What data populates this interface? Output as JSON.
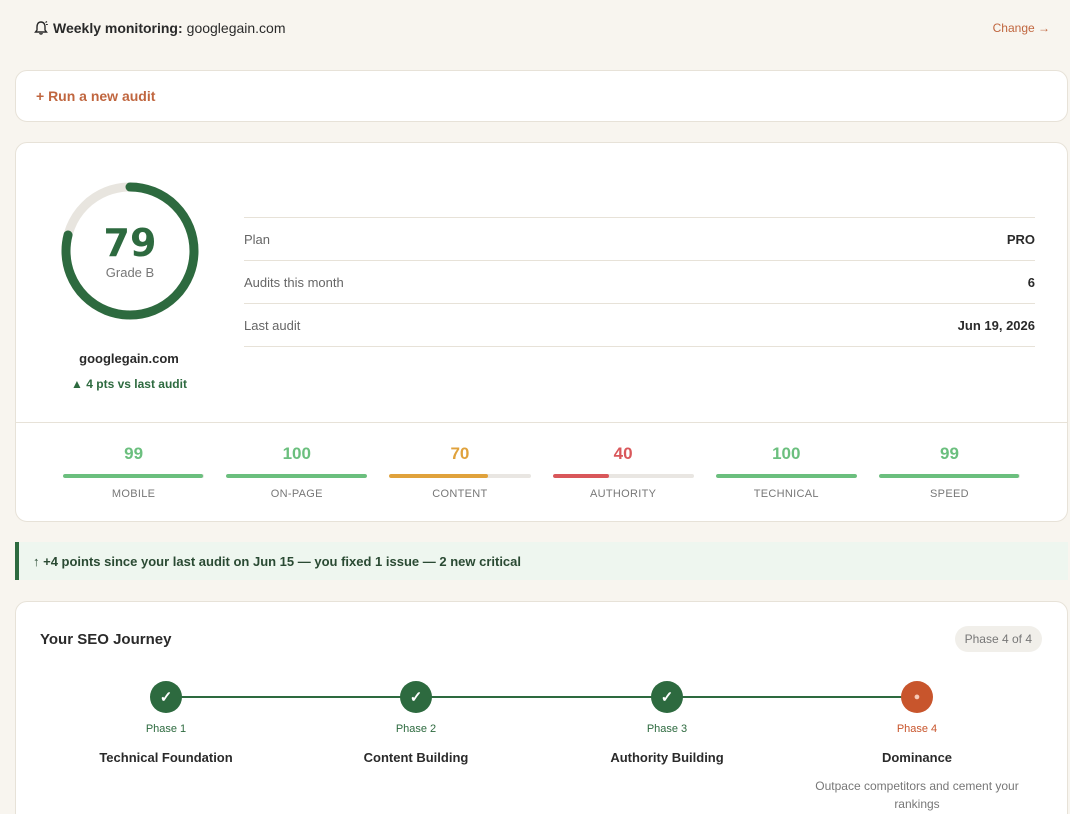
{
  "monitoring": {
    "label": "Weekly monitoring:",
    "domain": "googlegain.com",
    "change": "Change →"
  },
  "run_audit": "+ Run a new audit",
  "score": {
    "value": "79",
    "grade": "Grade B",
    "fraction": 0.79,
    "domain": "googlegain.com",
    "delta": "▲ 4 pts vs last audit"
  },
  "info": [
    {
      "label": "Plan",
      "value": "PRO"
    },
    {
      "label": "Audits this month",
      "value": "6"
    },
    {
      "label": "Last audit",
      "value": "Jun 19, 2026"
    }
  ],
  "metrics": [
    {
      "value": "99",
      "label": "MOBILE",
      "pct": 99,
      "color": "#6bbf7e"
    },
    {
      "value": "100",
      "label": "ON-PAGE",
      "pct": 100,
      "color": "#6bbf7e"
    },
    {
      "value": "70",
      "label": "CONTENT",
      "pct": 70,
      "color": "#e0a23c"
    },
    {
      "value": "40",
      "label": "AUTHORITY",
      "pct": 40,
      "color": "#d9575a"
    },
    {
      "value": "100",
      "label": "TECHNICAL",
      "pct": 100,
      "color": "#6bbf7e"
    },
    {
      "value": "99",
      "label": "SPEED",
      "pct": 99,
      "color": "#6bbf7e"
    }
  ],
  "notice": "↑ +4 points since your last audit on Jun 15 — you fixed 1 issue — 2 new critical",
  "journey": {
    "title": "Your SEO Journey",
    "badge": "Phase 4 of 4",
    "phases": [
      {
        "num": "Phase 1",
        "title": "Technical Foundation",
        "desc": "",
        "status": "done",
        "symbol": "✓"
      },
      {
        "num": "Phase 2",
        "title": "Content Building",
        "desc": "",
        "status": "done",
        "symbol": "✓"
      },
      {
        "num": "Phase 3",
        "title": "Authority Building",
        "desc": "",
        "status": "done",
        "symbol": "✓"
      },
      {
        "num": "Phase 4",
        "title": "Dominance",
        "desc": "Outpace competitors and cement your rankings",
        "status": "current",
        "symbol": "●"
      }
    ]
  },
  "colors": {
    "green": "#2d6a3f",
    "accent": "#c0663f",
    "current": "#c8552c",
    "track": "#e8e5df"
  }
}
